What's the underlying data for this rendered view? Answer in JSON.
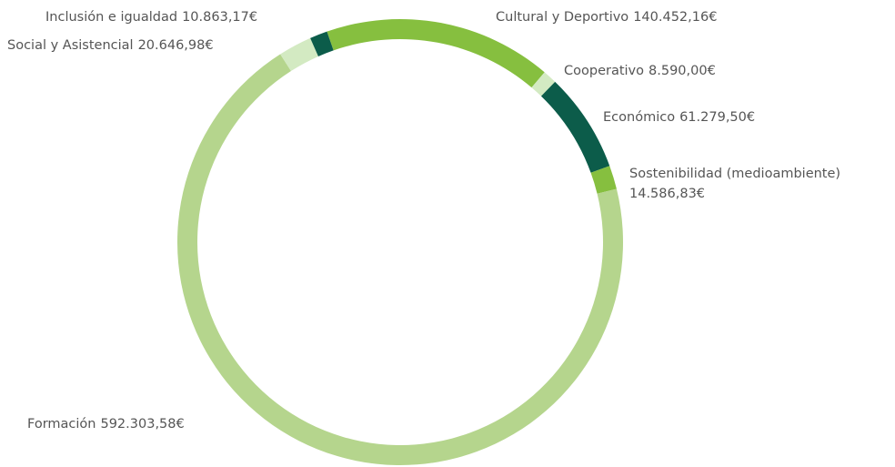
{
  "chart_data": {
    "type": "donut",
    "categories": [
      "Cultural y Deportivo",
      "Cooperativo",
      "Económico",
      "Sostenibilidad (medioambiente)",
      "Formación",
      "Social y Asistencial",
      "Inclusión e igualdad"
    ],
    "values": [
      140452.16,
      8590.0,
      61279.5,
      14586.83,
      592303.58,
      20646.98,
      10863.17
    ],
    "value_labels": [
      "140.452,16€",
      "8.590,00€",
      "61.279,50€",
      "14.586,83€",
      "592.303,58€",
      "20.646,98€",
      "10.863,17€"
    ],
    "colors": [
      "#86bf3f",
      "#d3eac2",
      "#0c5c4a",
      "#86bf3f",
      "#b5d58d",
      "#d3eac2",
      "#0c5c4a"
    ]
  }
}
